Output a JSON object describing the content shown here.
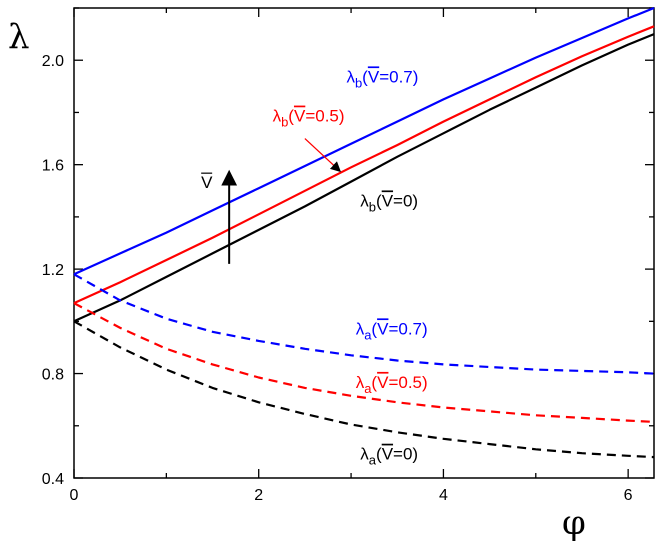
{
  "chart_data": {
    "type": "line",
    "xlabel": "φ",
    "ylabel": "λ",
    "xlim": [
      0,
      6.28
    ],
    "ylim": [
      0.4,
      2.2
    ],
    "x_ticks": [
      0,
      2,
      4,
      6
    ],
    "y_ticks": [
      0.4,
      0.8,
      1.2,
      1.6,
      2.0
    ],
    "x_tick_labels": [
      "0",
      "2",
      "4",
      "6"
    ],
    "y_tick_labels": [
      "0.4",
      "0.8",
      "1.2",
      "1.6",
      "2.0"
    ],
    "x": [
      0,
      0.5,
      1,
      1.5,
      2,
      2.5,
      3,
      3.5,
      4,
      4.5,
      5,
      5.5,
      6,
      6.28
    ],
    "series": [
      {
        "key": "b07",
        "color": "#0000ff",
        "dash": "solid",
        "values": [
          1.18,
          1.26,
          1.34,
          1.425,
          1.51,
          1.595,
          1.68,
          1.765,
          1.85,
          1.93,
          2.01,
          2.085,
          2.16,
          2.2
        ]
      },
      {
        "key": "b05",
        "color": "#ff0000",
        "dash": "solid",
        "values": [
          1.07,
          1.15,
          1.235,
          1.32,
          1.41,
          1.5,
          1.59,
          1.675,
          1.765,
          1.85,
          1.935,
          2.015,
          2.09,
          2.13
        ]
      },
      {
        "key": "b0",
        "color": "#000000",
        "dash": "solid",
        "values": [
          1.0,
          1.08,
          1.17,
          1.26,
          1.35,
          1.44,
          1.535,
          1.63,
          1.72,
          1.81,
          1.895,
          1.98,
          2.06,
          2.1
        ]
      },
      {
        "key": "a07",
        "color": "#0000ff",
        "dash": "dashed",
        "values": [
          1.18,
          1.08,
          1.01,
          0.96,
          0.925,
          0.895,
          0.87,
          0.85,
          0.835,
          0.825,
          0.815,
          0.81,
          0.805,
          0.8
        ]
      },
      {
        "key": "a05",
        "color": "#ff0000",
        "dash": "dashed",
        "values": [
          1.07,
          0.975,
          0.895,
          0.835,
          0.785,
          0.745,
          0.715,
          0.69,
          0.67,
          0.655,
          0.64,
          0.63,
          0.62,
          0.615
        ]
      },
      {
        "key": "a0",
        "color": "#000000",
        "dash": "dashed",
        "values": [
          1.0,
          0.9,
          0.815,
          0.745,
          0.69,
          0.645,
          0.605,
          0.575,
          0.55,
          0.53,
          0.51,
          0.495,
          0.485,
          0.48
        ]
      }
    ],
    "annotations": [
      {
        "key": "b07",
        "main": "λ",
        "sub": "b",
        "pre": "(",
        "vbar": "V",
        "post": "=0.7)",
        "color": "#0000ff",
        "x": 2.95,
        "y": 1.915
      },
      {
        "key": "b05",
        "main": "λ",
        "sub": "b",
        "pre": "(",
        "vbar": "V",
        "post": "=0.5)",
        "color": "#ff0000",
        "x": 2.15,
        "y": 1.765
      },
      {
        "key": "b0",
        "main": "λ",
        "sub": "b",
        "pre": "(",
        "vbar": "V",
        "post": "=0)",
        "color": "#000000",
        "x": 3.1,
        "y": 1.44
      },
      {
        "key": "a07",
        "main": "λ",
        "sub": "a",
        "pre": "(",
        "vbar": "V",
        "post": "=0.7)",
        "color": "#0000ff",
        "x": 3.05,
        "y": 0.95
      },
      {
        "key": "a05",
        "main": "λ",
        "sub": "a",
        "pre": "(",
        "vbar": "V",
        "post": "=0.5)",
        "color": "#ff0000",
        "x": 3.05,
        "y": 0.745
      },
      {
        "key": "a0",
        "main": "λ",
        "sub": "a",
        "pre": "(",
        "vbar": "V",
        "post": "=0)",
        "color": "#000000",
        "x": 3.1,
        "y": 0.47
      }
    ],
    "vbar_arrow_label": "V",
    "grid": false
  }
}
